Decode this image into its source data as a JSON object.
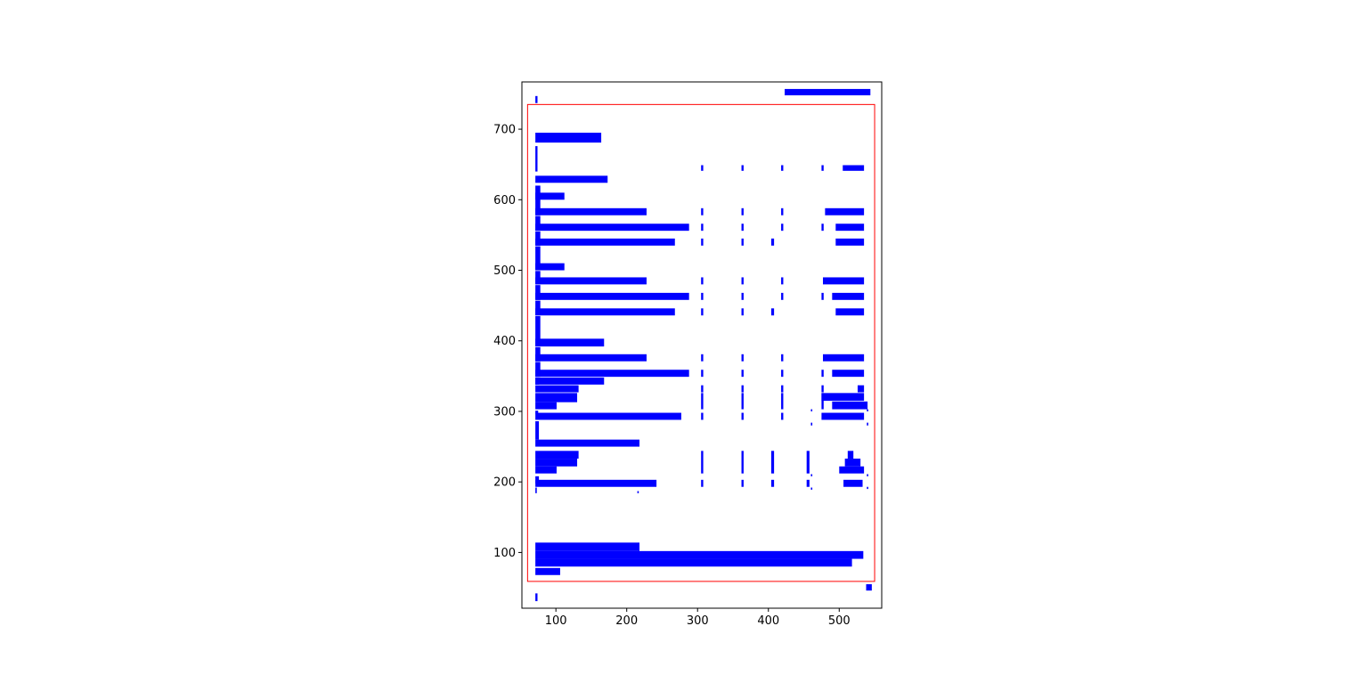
{
  "chart_data": {
    "type": "rect",
    "title": "",
    "xlabel": "",
    "ylabel": "",
    "xlim": [
      52,
      560
    ],
    "ylim": [
      21,
      767
    ],
    "xticks": [
      100,
      200,
      300,
      400,
      500
    ],
    "yticks": [
      100,
      200,
      300,
      400,
      500,
      600,
      700
    ],
    "grid": false,
    "colors": {
      "fill": "#0000ff",
      "outline": "#ff0000"
    },
    "outline_rect": [
      60,
      550,
      59,
      735
    ],
    "rects": [
      [
        423,
        544,
        748,
        757
      ],
      [
        71,
        74,
        737,
        747
      ],
      [
        71,
        164,
        681,
        695
      ],
      [
        71,
        74,
        640,
        676
      ],
      [
        305,
        308,
        641,
        649
      ],
      [
        362,
        365,
        641,
        649
      ],
      [
        418,
        421,
        641,
        649
      ],
      [
        475,
        478,
        641,
        649
      ],
      [
        505,
        535,
        641,
        649
      ],
      [
        71,
        173,
        624,
        634
      ],
      [
        71,
        78,
        578,
        620
      ],
      [
        71,
        112,
        600,
        610
      ],
      [
        71,
        228,
        578,
        588
      ],
      [
        305,
        308,
        578,
        588
      ],
      [
        362,
        365,
        578,
        588
      ],
      [
        418,
        421,
        578,
        588
      ],
      [
        480,
        535,
        578,
        588
      ],
      [
        71,
        78,
        556,
        577
      ],
      [
        71,
        288,
        556,
        566
      ],
      [
        305,
        308,
        556,
        566
      ],
      [
        362,
        365,
        556,
        566
      ],
      [
        418,
        421,
        556,
        566
      ],
      [
        475,
        478,
        556,
        566
      ],
      [
        495,
        535,
        556,
        566
      ],
      [
        71,
        78,
        535,
        555
      ],
      [
        71,
        268,
        535,
        545
      ],
      [
        305,
        308,
        535,
        545
      ],
      [
        362,
        365,
        535,
        545
      ],
      [
        404,
        408,
        535,
        545
      ],
      [
        495,
        535,
        535,
        545
      ],
      [
        71,
        78,
        500,
        534
      ],
      [
        71,
        112,
        500,
        510
      ],
      [
        71,
        78,
        480,
        499
      ],
      [
        71,
        228,
        480,
        490
      ],
      [
        305,
        308,
        480,
        490
      ],
      [
        362,
        365,
        480,
        490
      ],
      [
        418,
        421,
        480,
        490
      ],
      [
        477,
        535,
        480,
        490
      ],
      [
        71,
        78,
        458,
        479
      ],
      [
        71,
        288,
        458,
        468
      ],
      [
        305,
        308,
        458,
        468
      ],
      [
        362,
        365,
        458,
        468
      ],
      [
        418,
        421,
        458,
        468
      ],
      [
        475,
        478,
        458,
        468
      ],
      [
        490,
        535,
        458,
        468
      ],
      [
        71,
        78,
        436,
        457
      ],
      [
        71,
        268,
        436,
        446
      ],
      [
        305,
        308,
        436,
        446
      ],
      [
        362,
        365,
        436,
        446
      ],
      [
        404,
        408,
        436,
        446
      ],
      [
        495,
        535,
        436,
        446
      ],
      [
        71,
        78,
        392,
        435
      ],
      [
        71,
        168,
        392,
        403
      ],
      [
        71,
        78,
        371,
        391
      ],
      [
        71,
        228,
        371,
        381
      ],
      [
        305,
        308,
        371,
        381
      ],
      [
        362,
        365,
        371,
        381
      ],
      [
        418,
        421,
        371,
        381
      ],
      [
        477,
        535,
        371,
        381
      ],
      [
        71,
        78,
        349,
        370
      ],
      [
        71,
        288,
        349,
        359
      ],
      [
        305,
        308,
        349,
        359
      ],
      [
        362,
        365,
        349,
        359
      ],
      [
        418,
        421,
        349,
        359
      ],
      [
        475,
        478,
        349,
        359
      ],
      [
        490,
        535,
        349,
        359
      ],
      [
        71,
        76,
        338,
        348
      ],
      [
        71,
        168,
        338,
        348
      ],
      [
        71,
        132,
        327,
        337
      ],
      [
        305,
        308,
        327,
        337
      ],
      [
        362,
        365,
        327,
        337
      ],
      [
        418,
        421,
        327,
        337
      ],
      [
        475,
        478,
        327,
        337
      ],
      [
        526,
        535,
        327,
        337
      ],
      [
        71,
        130,
        313,
        326
      ],
      [
        71,
        101,
        303,
        313
      ],
      [
        305,
        308,
        303,
        326
      ],
      [
        362,
        365,
        303,
        326
      ],
      [
        418,
        421,
        303,
        326
      ],
      [
        475,
        478,
        303,
        326
      ],
      [
        475,
        535,
        315,
        326
      ],
      [
        490,
        540,
        303,
        314
      ],
      [
        460,
        462,
        300,
        303
      ],
      [
        539,
        541,
        300,
        303
      ],
      [
        71,
        75,
        297,
        301
      ],
      [
        71,
        277,
        288,
        298
      ],
      [
        305,
        308,
        288,
        298
      ],
      [
        362,
        365,
        288,
        298
      ],
      [
        418,
        421,
        288,
        298
      ],
      [
        475,
        535,
        288,
        298
      ],
      [
        460,
        462,
        280,
        284
      ],
      [
        539,
        541,
        280,
        284
      ],
      [
        71,
        76,
        260,
        286
      ],
      [
        71,
        218,
        250,
        260
      ],
      [
        71,
        132,
        233,
        244
      ],
      [
        71,
        130,
        222,
        233
      ],
      [
        71,
        101,
        212,
        222
      ],
      [
        305,
        308,
        212,
        244
      ],
      [
        362,
        365,
        212,
        244
      ],
      [
        404,
        408,
        212,
        244
      ],
      [
        454,
        458,
        212,
        244
      ],
      [
        512,
        520,
        233,
        244
      ],
      [
        508,
        530,
        222,
        233
      ],
      [
        500,
        535,
        212,
        222
      ],
      [
        460,
        462,
        208,
        211
      ],
      [
        539,
        541,
        208,
        211
      ],
      [
        71,
        76,
        198,
        208
      ],
      [
        71,
        242,
        193,
        203
      ],
      [
        305,
        308,
        193,
        203
      ],
      [
        362,
        365,
        193,
        203
      ],
      [
        404,
        408,
        193,
        203
      ],
      [
        454,
        458,
        193,
        203
      ],
      [
        506,
        533,
        193,
        203
      ],
      [
        460,
        462,
        189,
        192
      ],
      [
        539,
        541,
        190,
        193
      ],
      [
        71,
        73,
        184,
        192
      ],
      [
        215,
        217,
        184,
        187
      ],
      [
        71,
        218,
        102,
        114
      ],
      [
        71,
        534,
        91,
        102
      ],
      [
        71,
        518,
        80,
        91
      ],
      [
        71,
        106,
        68,
        78
      ],
      [
        538,
        546,
        46,
        55
      ],
      [
        71,
        74,
        31,
        42
      ]
    ]
  }
}
